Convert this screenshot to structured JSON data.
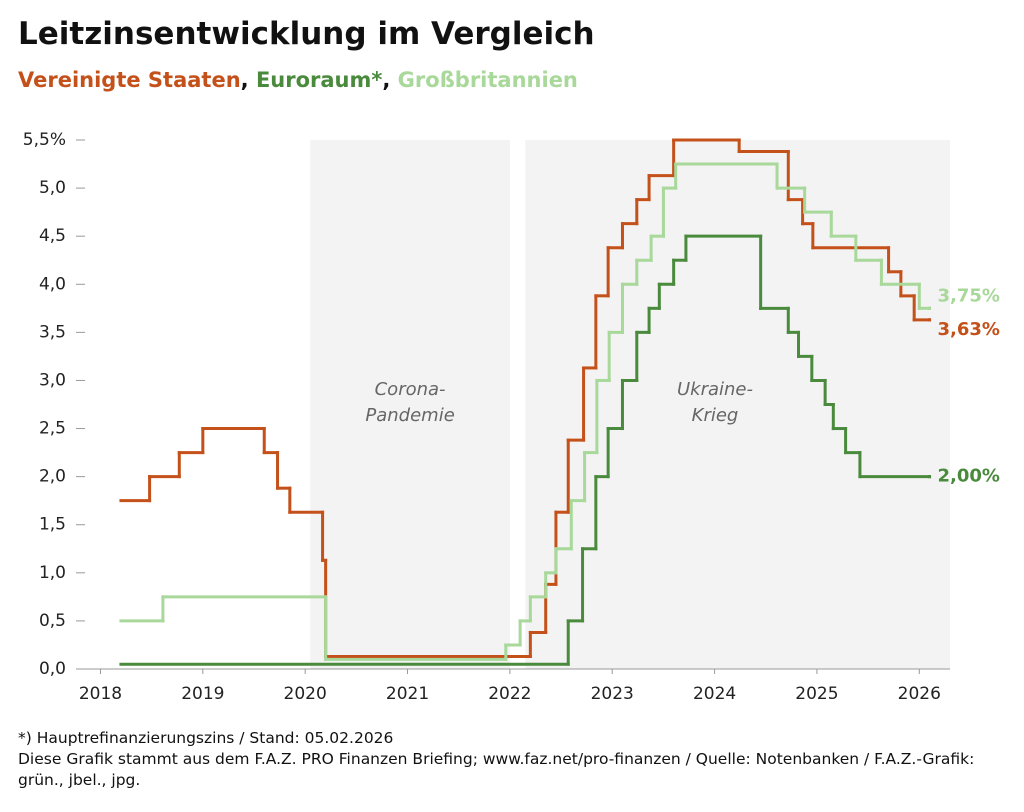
{
  "chart_data": {
    "type": "step-line",
    "step": "post",
    "title": "Leitzinsentwicklung im Vergleich",
    "legend_separator": ", ",
    "footnote": "*) Hauptrefinanzierungszins / Stand: 05.02.2026",
    "source": "Diese Grafik stammt aus dem F.A.Z. PRO Finanzen Briefing; www.faz.net/pro-finanzen / Quelle: Notenbanken / F.A.Z.-Grafik: grün., jbel., jpg.",
    "xlim": [
      2017.8,
      2026.3
    ],
    "xticks": [
      2018,
      2019,
      2020,
      2021,
      2022,
      2023,
      2024,
      2025,
      2026
    ],
    "ylim": [
      0,
      5.5
    ],
    "yticks": [
      {
        "value": 0,
        "label": "0,0"
      },
      {
        "value": 0.5,
        "label": "0,5"
      },
      {
        "value": 1,
        "label": "1,0"
      },
      {
        "value": 1.5,
        "label": "1,5"
      },
      {
        "value": 2,
        "label": "2,0"
      },
      {
        "value": 2.5,
        "label": "2,5"
      },
      {
        "value": 3,
        "label": "3,0"
      },
      {
        "value": 3.5,
        "label": "3,5"
      },
      {
        "value": 4,
        "label": "4,0"
      },
      {
        "value": 4.5,
        "label": "4,5"
      },
      {
        "value": 5,
        "label": "5,0"
      },
      {
        "value": 5.5,
        "label": "5,5%"
      }
    ],
    "shaded_regions": [
      {
        "start": 2020.05,
        "end": 2022.0,
        "label": [
          "Corona-",
          "Pandemie"
        ]
      },
      {
        "start": 2022.15,
        "end": 2026.3,
        "label": [
          "Ukraine-",
          "Krieg"
        ]
      }
    ],
    "series": [
      {
        "name": "Vereinigte Staaten",
        "color": "#c4501a",
        "end_label": "3,63%",
        "x": [
          2018.2,
          2018.48,
          2018.77,
          2019.0,
          2019.6,
          2019.73,
          2019.85,
          2020.17,
          2020.2,
          2022.2,
          2022.35,
          2022.45,
          2022.57,
          2022.72,
          2022.84,
          2022.96,
          2023.1,
          2023.24,
          2023.36,
          2023.6,
          2024.24,
          2024.72,
          2024.86,
          2024.96,
          2025.7,
          2025.82,
          2025.95,
          2026.1
        ],
        "values": [
          1.75,
          2.0,
          2.25,
          2.5,
          2.25,
          1.88,
          1.63,
          1.13,
          0.13,
          0.38,
          0.88,
          1.63,
          2.38,
          3.13,
          3.88,
          4.38,
          4.63,
          4.88,
          5.13,
          5.5,
          5.38,
          4.88,
          4.63,
          4.38,
          4.13,
          3.88,
          3.63,
          3.63
        ]
      },
      {
        "name": "Euroraum*",
        "color": "#4a8a3c",
        "end_label": "2,00%",
        "x": [
          2018.2,
          2022.57,
          2022.71,
          2022.84,
          2022.96,
          2023.1,
          2023.24,
          2023.36,
          2023.46,
          2023.6,
          2023.72,
          2024.45,
          2024.72,
          2024.82,
          2024.95,
          2025.08,
          2025.16,
          2025.28,
          2025.42,
          2026.1
        ],
        "values": [
          0.05,
          0.5,
          1.25,
          2.0,
          2.5,
          3.0,
          3.5,
          3.75,
          4.0,
          4.25,
          4.5,
          3.75,
          3.5,
          3.25,
          3.0,
          2.75,
          2.5,
          2.25,
          2.0,
          2.0
        ]
      },
      {
        "name": "Großbritannien",
        "color": "#a8d89a",
        "end_label": "3,75%",
        "x": [
          2018.2,
          2018.61,
          2020.2,
          2021.96,
          2022.1,
          2022.2,
          2022.35,
          2022.45,
          2022.6,
          2022.73,
          2022.85,
          2022.97,
          2023.1,
          2023.24,
          2023.38,
          2023.5,
          2023.62,
          2024.61,
          2024.88,
          2025.14,
          2025.38,
          2025.63,
          2026.0,
          2026.1
        ],
        "values": [
          0.5,
          0.75,
          0.1,
          0.25,
          0.5,
          0.75,
          1.0,
          1.25,
          1.75,
          2.25,
          3.0,
          3.5,
          4.0,
          4.25,
          4.5,
          5.0,
          5.25,
          5.0,
          4.75,
          4.5,
          4.25,
          4.0,
          3.75,
          3.75
        ]
      }
    ]
  }
}
